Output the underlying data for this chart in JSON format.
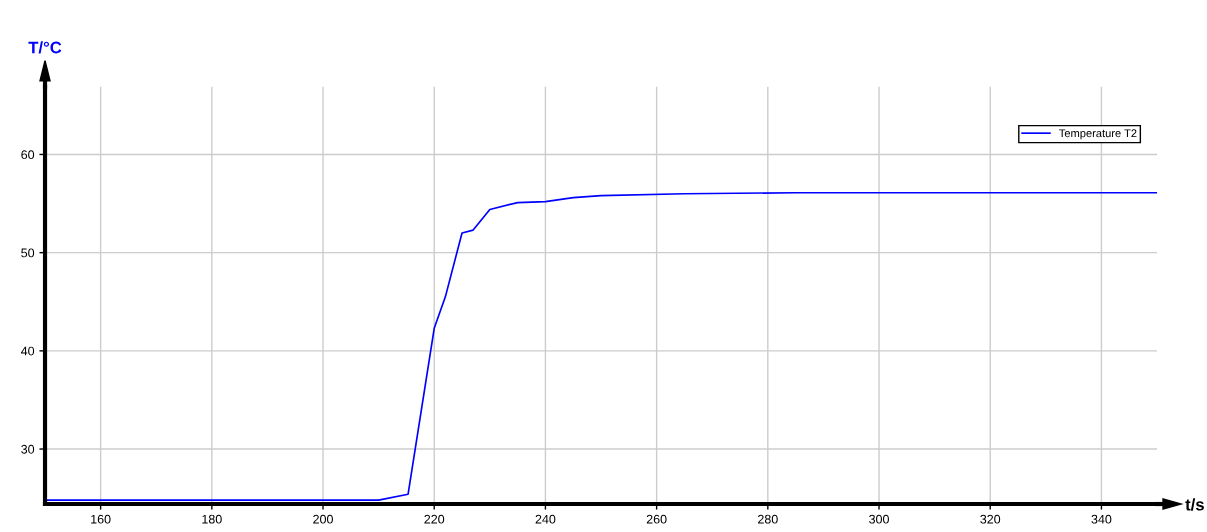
{
  "chart_data": {
    "type": "line",
    "xlabel": "t/s",
    "ylabel": "T/°C",
    "x": [
      150,
      210,
      215.3,
      220,
      222,
      225,
      227,
      230,
      235,
      240,
      245,
      250,
      265,
      285,
      350
    ],
    "series": [
      {
        "name": "Temperature T2",
        "color": "#0000ff",
        "values": [
          24.8,
          24.8,
          25.4,
          42.3,
          45.5,
          52.0,
          52.3,
          54.4,
          55.1,
          55.2,
          55.6,
          55.8,
          56.0,
          56.1,
          56.1
        ]
      }
    ],
    "xlim": [
      150,
      350
    ],
    "xticks": [
      160,
      180,
      200,
      220,
      240,
      260,
      280,
      300,
      320,
      340
    ],
    "ylim": [
      24.4,
      66.9
    ],
    "yticks": [
      30,
      40,
      50,
      60
    ],
    "grid": true,
    "legend": "top right",
    "marker": "none",
    "line_style": "solid"
  }
}
